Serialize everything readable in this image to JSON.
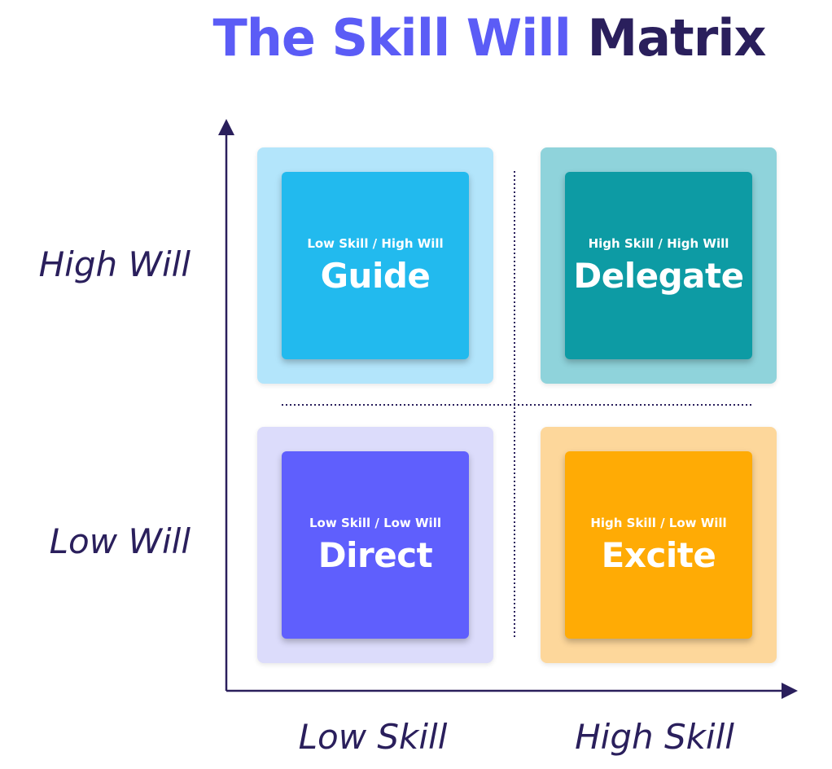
{
  "title": {
    "part1": "The Skill Will",
    "part2": "Matrix"
  },
  "axes": {
    "y_high": "High Will",
    "y_low": "Low Will",
    "x_low": "Low Skill",
    "x_high": "High Skill"
  },
  "quadrants": [
    {
      "subtitle": "Low Skill / High Will",
      "name": "Guide"
    },
    {
      "subtitle": "High Skill / High Will",
      "name": "Delegate"
    },
    {
      "subtitle": "Low Skill / Low Will",
      "name": "Direct"
    },
    {
      "subtitle": "High Skill / Low Will",
      "name": "Excite"
    }
  ],
  "colors": {
    "title_accent": "#5b5cf6",
    "title_dark": "#2a1f5c",
    "axis": "#2a1f5c",
    "guide_outer": "#b3e5fb",
    "guide_inner": "#22baee",
    "delegate_outer": "#8fd3db",
    "delegate_inner": "#0d9ba4",
    "direct_outer": "#dcdcfb",
    "direct_inner": "#5f5ffd",
    "excite_outer": "#fdd79b",
    "excite_inner": "#ffab05"
  }
}
